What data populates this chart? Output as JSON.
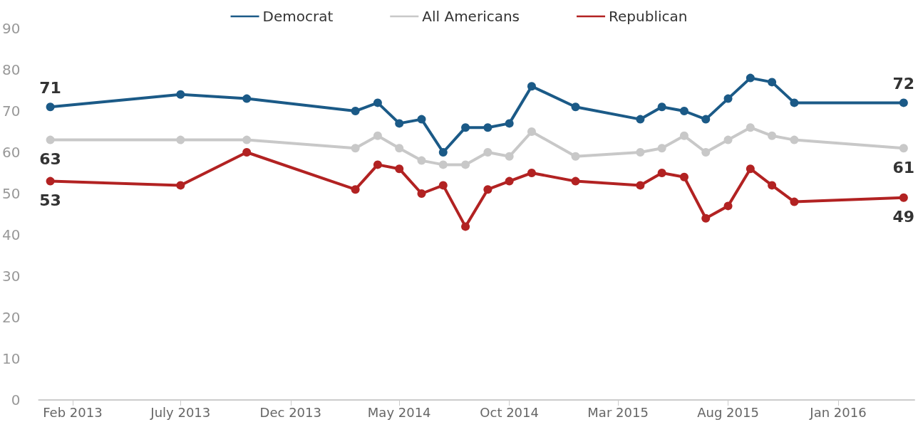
{
  "chart_data": {
    "type": "line",
    "x": [
      "2013-01",
      "2013-07",
      "2013-10",
      "2014-03",
      "2014-04",
      "2014-05",
      "2014-06",
      "2014-07",
      "2014-08",
      "2014-09",
      "2014-10",
      "2014-11",
      "2015-01",
      "2015-04",
      "2015-05",
      "2015-06",
      "2015-07",
      "2015-08",
      "2015-09",
      "2015-10",
      "2015-11",
      "2016-04"
    ],
    "series": [
      {
        "name": "Democrat",
        "color": "#1b5a87",
        "values": [
          71,
          74,
          73,
          70,
          72,
          67,
          68,
          60,
          66,
          66,
          67,
          76,
          71,
          68,
          71,
          70,
          68,
          73,
          78,
          77,
          72,
          72
        ],
        "value_labels": [
          "71",
          null,
          null,
          null,
          null,
          null,
          null,
          null,
          null,
          null,
          null,
          null,
          null,
          null,
          null,
          null,
          null,
          null,
          null,
          null,
          null,
          "72"
        ]
      },
      {
        "name": "All Americans",
        "color": "#c8c8c8",
        "values": [
          63,
          63,
          63,
          61,
          64,
          61,
          58,
          57,
          57,
          60,
          59,
          65,
          59,
          60,
          61,
          64,
          60,
          63,
          66,
          64,
          63,
          61
        ],
        "value_labels": [
          "63",
          null,
          null,
          null,
          null,
          null,
          null,
          null,
          null,
          null,
          null,
          null,
          null,
          null,
          null,
          null,
          null,
          null,
          null,
          null,
          null,
          "61"
        ]
      },
      {
        "name": "Republican",
        "color": "#b22222",
        "values": [
          53,
          52,
          60,
          51,
          57,
          56,
          50,
          52,
          42,
          51,
          53,
          55,
          53,
          52,
          55,
          54,
          44,
          47,
          56,
          52,
          48,
          49
        ],
        "value_labels": [
          "53",
          null,
          null,
          null,
          null,
          null,
          null,
          null,
          null,
          null,
          null,
          null,
          null,
          null,
          null,
          null,
          null,
          null,
          null,
          null,
          null,
          "49"
        ]
      }
    ],
    "xlim": [
      "2012-12-16",
      "2016-04-16"
    ],
    "xticks": [
      {
        "value": "2013-02",
        "label": "Feb 2013"
      },
      {
        "value": "2013-07",
        "label": "July 2013"
      },
      {
        "value": "2013-12",
        "label": "Dec 2013"
      },
      {
        "value": "2014-05",
        "label": "May 2014"
      },
      {
        "value": "2014-10",
        "label": "Oct 2014"
      },
      {
        "value": "2015-03",
        "label": "Mar 2015"
      },
      {
        "value": "2015-08",
        "label": "Aug 2015"
      },
      {
        "value": "2016-01",
        "label": "Jan 2016"
      }
    ],
    "ylim": [
      0,
      90
    ],
    "yticks": [
      0,
      10,
      20,
      30,
      40,
      50,
      60,
      70,
      80,
      90
    ],
    "grid": false,
    "legend": "top",
    "marker": "circle",
    "line_style": "solid"
  }
}
